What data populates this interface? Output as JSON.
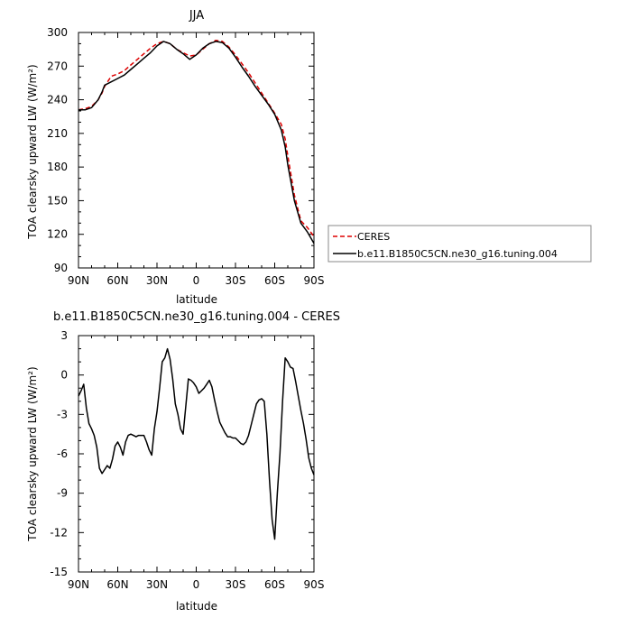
{
  "chart_data": [
    {
      "type": "line",
      "title": "JJA",
      "xlabel": "latitude",
      "ylabel": "TOA clearsky upward LW (W/m²)",
      "xlim": [
        90,
        -90
      ],
      "ylim": [
        90,
        300
      ],
      "xticks": [
        "90N",
        "60N",
        "30N",
        "0",
        "30S",
        "60S",
        "90S"
      ],
      "yticks": [
        "90",
        "120",
        "150",
        "180",
        "210",
        "240",
        "270",
        "300"
      ],
      "legend_position": "right",
      "series": [
        {
          "name": "CERES",
          "color": "#dd0000",
          "dash": "dashed",
          "x": [
            90,
            85,
            80,
            75,
            72,
            70,
            65,
            60,
            55,
            50,
            45,
            40,
            35,
            30,
            25,
            20,
            15,
            10,
            5,
            0,
            -5,
            -10,
            -15,
            -20,
            -25,
            -30,
            -35,
            -40,
            -45,
            -50,
            -55,
            -60,
            -65,
            -68,
            -70,
            -75,
            -80,
            -85,
            -90
          ],
          "values": [
            231,
            232,
            234,
            240,
            246,
            252,
            261,
            263,
            266,
            271,
            276,
            281,
            286,
            290,
            292,
            290,
            285,
            282,
            279,
            280,
            285,
            290,
            293,
            292,
            287,
            280,
            272,
            264,
            255,
            246,
            237,
            228,
            218,
            205,
            190,
            155,
            132,
            126,
            118
          ]
        },
        {
          "name": "b.e11.B1850C5CN.ne30_g16.tuning.004",
          "color": "#000000",
          "dash": "solid",
          "x": [
            90,
            85,
            80,
            75,
            72,
            70,
            65,
            60,
            55,
            50,
            45,
            40,
            35,
            30,
            25,
            20,
            15,
            10,
            5,
            0,
            -5,
            -10,
            -15,
            -20,
            -25,
            -30,
            -35,
            -40,
            -45,
            -50,
            -55,
            -60,
            -65,
            -68,
            -70,
            -75,
            -80,
            -85,
            -90
          ],
          "values": [
            231,
            231,
            233,
            240,
            247,
            253,
            256,
            259,
            262,
            267,
            272,
            277,
            282,
            288,
            292,
            290,
            285,
            281,
            276,
            280,
            286,
            290,
            292,
            291,
            286,
            278,
            269,
            261,
            252,
            244,
            236,
            227,
            213,
            198,
            182,
            150,
            130,
            122,
            112
          ]
        }
      ]
    },
    {
      "type": "line",
      "title": "b.e11.B1850C5CN.ne30_g16.tuning.004 - CERES",
      "xlabel": "latitude",
      "ylabel": "TOA clearsky upward LW (W/m²)",
      "xlim": [
        90,
        -90
      ],
      "ylim": [
        -15,
        3
      ],
      "xticks": [
        "90N",
        "60N",
        "30N",
        "0",
        "30S",
        "60S",
        "90S"
      ],
      "yticks": [
        "3",
        "0",
        "-3",
        "-6",
        "-9",
        "-12",
        "-15"
      ],
      "series": [
        {
          "color": "#000000",
          "dash": "solid",
          "x": [
            90,
            88,
            86,
            84,
            82,
            80,
            78,
            76,
            74,
            72,
            70,
            68,
            66,
            64,
            62,
            60,
            58,
            56,
            54,
            52,
            50,
            48,
            46,
            44,
            42,
            40,
            38,
            36,
            34,
            32,
            30,
            28,
            26,
            24,
            22,
            20,
            18,
            16,
            14,
            12,
            10,
            8,
            6,
            4,
            2,
            0,
            -2,
            -4,
            -6,
            -8,
            -10,
            -12,
            -14,
            -16,
            -18,
            -20,
            -22,
            -24,
            -26,
            -28,
            -30,
            -32,
            -34,
            -36,
            -38,
            -40,
            -42,
            -44,
            -46,
            -48,
            -50,
            -52,
            -54,
            -56,
            -58,
            -60,
            -62,
            -64,
            -66,
            -68,
            -70,
            -72,
            -74,
            -76,
            -78,
            -80,
            -82,
            -84,
            -86,
            -88,
            -90
          ],
          "values": [
            -1.6,
            -1.2,
            -0.7,
            -2.5,
            -3.7,
            -4.1,
            -4.6,
            -5.5,
            -7.1,
            -7.5,
            -7.2,
            -6.9,
            -7.1,
            -6.4,
            -5.4,
            -5.1,
            -5.5,
            -6.1,
            -5.1,
            -4.6,
            -4.5,
            -4.6,
            -4.7,
            -4.6,
            -4.6,
            -4.6,
            -5.1,
            -5.7,
            -6.1,
            -4.1,
            -2.8,
            -1.0,
            1.0,
            1.3,
            2.0,
            1.2,
            -0.3,
            -2.2,
            -3.0,
            -4.1,
            -4.5,
            -2.4,
            -0.3,
            -0.4,
            -0.6,
            -0.9,
            -1.4,
            -1.2,
            -1.0,
            -0.7,
            -0.4,
            -0.9,
            -1.9,
            -2.8,
            -3.6,
            -4.0,
            -4.4,
            -4.7,
            -4.7,
            -4.8,
            -4.8,
            -5.0,
            -5.2,
            -5.3,
            -5.1,
            -4.6,
            -3.8,
            -3.0,
            -2.2,
            -1.9,
            -1.8,
            -2.0,
            -4.5,
            -8.0,
            -11.0,
            -12.5,
            -9.0,
            -6.0,
            -2.0,
            1.3,
            1.0,
            0.6,
            0.5,
            -0.5,
            -1.6,
            -2.7,
            -3.7,
            -4.9,
            -6.3,
            -7.1,
            -7.6
          ]
        }
      ]
    }
  ]
}
